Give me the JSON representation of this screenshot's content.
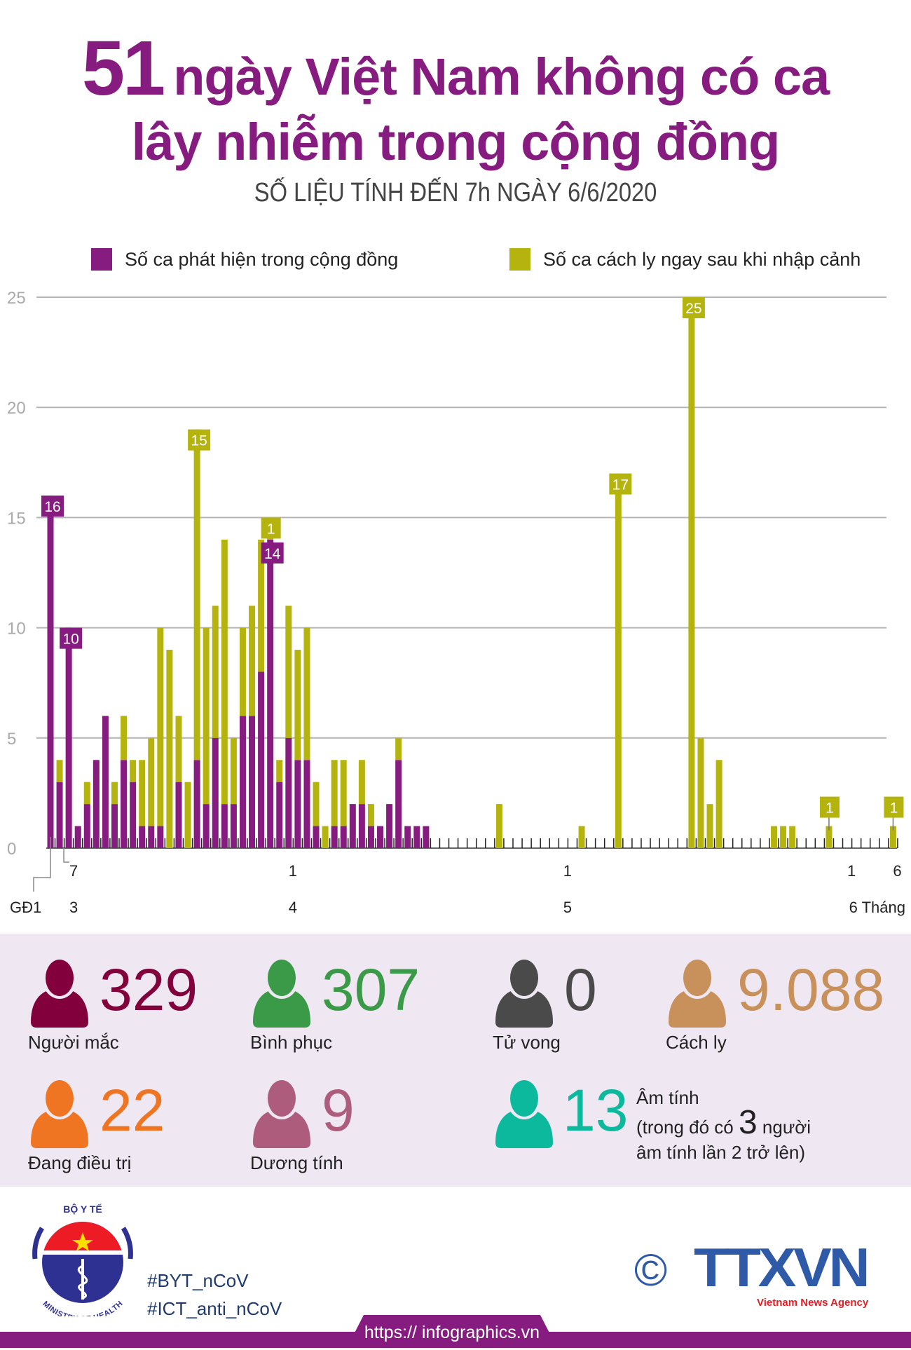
{
  "header": {
    "title_number": "51",
    "title_line1": "ngày Việt Nam không có ca",
    "title_line2": "lây nhiễm trong cộng đồng",
    "subtitle": "SỐ LIỆU TÍNH ĐẾN 7h NGÀY 6/6/2020"
  },
  "colors": {
    "community": "#861c7f",
    "quarantine": "#b5b40e",
    "title": "#861c7f",
    "panel_bg": "#efe8f3"
  },
  "chart_data": {
    "type": "bar",
    "stacked": true,
    "ylim": [
      0,
      25
    ],
    "yticks": [
      0,
      5,
      10,
      15,
      20,
      25
    ],
    "grid": true,
    "legend_placement": "top",
    "categories": [
      "GĐ1",
      "7/3",
      "8/3",
      "9/3",
      "10/3",
      "11/3",
      "12/3",
      "13/3",
      "14/3",
      "15/3",
      "16/3",
      "17/3",
      "18/3",
      "19/3",
      "20/3",
      "21/3",
      "22/3",
      "23/3",
      "24/3",
      "25/3",
      "26/3",
      "27/3",
      "28/3",
      "29/3",
      "30/3",
      "31/3",
      "1/4",
      "2/4",
      "3/4",
      "4/4",
      "5/4",
      "6/4",
      "7/4",
      "8/4",
      "9/4",
      "10/4",
      "11/4",
      "12/4",
      "13/4",
      "14/4",
      "15/4",
      "16/4",
      "17/4",
      "18/4",
      "19/4",
      "20/4",
      "21/4",
      "22/4",
      "23/4",
      "24/4",
      "25/4",
      "26/4",
      "27/4",
      "28/4",
      "29/4",
      "30/4",
      "1/5",
      "2/5",
      "3/5",
      "4/5",
      "5/5",
      "6/5",
      "7/5",
      "8/5",
      "9/5",
      "10/5",
      "11/5",
      "12/5",
      "13/5",
      "14/5",
      "15/5",
      "16/5",
      "17/5",
      "18/5",
      "19/5",
      "20/5",
      "21/5",
      "22/5",
      "23/5",
      "24/5",
      "25/5",
      "26/5",
      "27/5",
      "28/5",
      "29/5",
      "30/5",
      "31/5",
      "1/6",
      "2/6",
      "3/6",
      "4/6",
      "5/6",
      "6/6"
    ],
    "series": [
      {
        "name": "Số ca phát hiện trong cộng đồng",
        "color": "#861c7f",
        "values": [
          16,
          3,
          10,
          1,
          2,
          4,
          6,
          2,
          4,
          3,
          1,
          1,
          1,
          0,
          3,
          0,
          4,
          2,
          5,
          2,
          2,
          6,
          6,
          8,
          14,
          3,
          5,
          4,
          4,
          1,
          0,
          1,
          1,
          2,
          2,
          1,
          1,
          2,
          4,
          1,
          1,
          1,
          0,
          0,
          0,
          0,
          0,
          0,
          0,
          0,
          0,
          0,
          0,
          0,
          0,
          0,
          0,
          0,
          0,
          0,
          0,
          0,
          0,
          0,
          0,
          0,
          0,
          0,
          0,
          0,
          0,
          0,
          0,
          0,
          0,
          0,
          0,
          0,
          0,
          0,
          0,
          0,
          0,
          0,
          0,
          0,
          0,
          0,
          0,
          0,
          0,
          0,
          0
        ]
      },
      {
        "name": "Số ca cách ly ngay sau khi nhập cảnh",
        "color": "#b5b40e",
        "values": [
          0,
          1,
          0,
          0,
          1,
          0,
          0,
          1,
          2,
          1,
          3,
          4,
          9,
          9,
          3,
          3,
          15,
          8,
          6,
          12,
          3,
          4,
          5,
          6,
          1,
          1,
          6,
          5,
          6,
          2,
          1,
          3,
          3,
          0,
          2,
          1,
          0,
          0,
          1,
          0,
          0,
          0,
          0,
          0,
          0,
          0,
          0,
          0,
          0,
          2,
          0,
          0,
          0,
          0,
          0,
          0,
          0,
          0,
          1,
          0,
          0,
          0,
          17,
          0,
          0,
          0,
          0,
          0,
          0,
          0,
          25,
          5,
          2,
          4,
          0,
          0,
          0,
          0,
          0,
          1,
          1,
          1,
          0,
          0,
          0,
          1,
          0,
          0,
          0,
          0,
          0,
          0,
          1
        ]
      }
    ],
    "data_labels": [
      {
        "category": "GĐ1",
        "series": 0,
        "text": "16"
      },
      {
        "category": "8/3",
        "series": 0,
        "text": "10"
      },
      {
        "category": "22/3",
        "series": 1,
        "text": "15"
      },
      {
        "category": "30/3",
        "series": 1,
        "text": "1"
      },
      {
        "category": "30/3",
        "series": 0,
        "text": "14"
      },
      {
        "category": "7/5",
        "series": 1,
        "text": "17"
      },
      {
        "category": "15/5",
        "series": 1,
        "text": "25"
      },
      {
        "category": "30/5",
        "series": 1,
        "text": "1"
      },
      {
        "category": "6/6",
        "series": 1,
        "text": "1"
      }
    ],
    "x_axis_labels": [
      {
        "category": "GĐ1",
        "day": "",
        "month": "GĐ1"
      },
      {
        "category": "7/3",
        "day": "7",
        "month": "3"
      },
      {
        "category": "1/4",
        "day": "1",
        "month": "4"
      },
      {
        "category": "1/5",
        "day": "1",
        "month": "5"
      },
      {
        "category": "1/6",
        "day": "1",
        "month": ""
      },
      {
        "category": "6/6",
        "day": "6",
        "month": "6 Tháng"
      }
    ]
  },
  "stats": [
    {
      "value": "329",
      "label": "Người mắc",
      "color": "#82003c"
    },
    {
      "value": "307",
      "label": "Bình phục",
      "color": "#3a9a48"
    },
    {
      "value": "0",
      "label": "Tử vong",
      "color": "#4a4a4a"
    },
    {
      "value": "9.088",
      "label": "Cách ly",
      "color": "#c8905a"
    },
    {
      "value": "22",
      "label": "Đang điều trị",
      "color": "#f07522"
    },
    {
      "value": "9",
      "label": "Dương tính",
      "color": "#ad5d7b"
    },
    {
      "value": "13",
      "label": "",
      "color": "#0db99c"
    }
  ],
  "negative_note": {
    "line1": "Âm tính",
    "line2_pre": "(trong đó có ",
    "line2_num": "3",
    "line2_post": " người",
    "line3": "âm tính lần 2 trở lên)"
  },
  "footer": {
    "moh_logo_text_top": "BỘ Y TẾ",
    "moh_logo_text_bottom": "MINISTRY OF HEALTH",
    "hashtag1": "#BYT_nCoV",
    "hashtag2": "#ICT_anti_nCoV",
    "copyright": "©",
    "agency_logo": "TTXVN",
    "agency_tagline": "Vietnam News Agency",
    "url": "https:// infographics.vn"
  }
}
